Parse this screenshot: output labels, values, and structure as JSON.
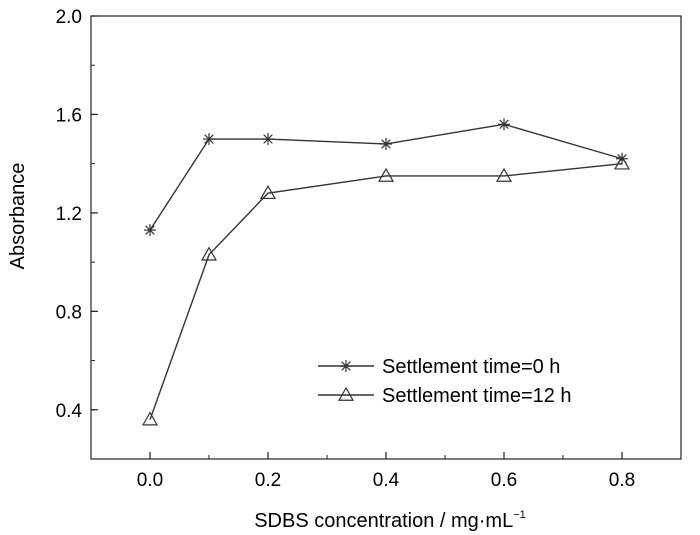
{
  "chart_data": {
    "type": "line",
    "xlabel": "SDBS concentration / mg·mL",
    "xlabel_sup": "−1",
    "ylabel": "Absorbance",
    "xlim": [
      -0.1,
      0.9
    ],
    "ylim": [
      0.2,
      2.0
    ],
    "xticks": [
      0.0,
      0.2,
      0.4,
      0.6,
      0.8
    ],
    "xtick_labels": [
      "0.0",
      "0.2",
      "0.4",
      "0.6",
      "0.8"
    ],
    "yticks": [
      0.4,
      0.8,
      1.2,
      1.6,
      2.0
    ],
    "ytick_labels": [
      "0.4",
      "0.8",
      "1.2",
      "1.6",
      "2.0"
    ],
    "grid": false,
    "legend_position": "bottom-right",
    "series": [
      {
        "name": "Settlement time=0 h",
        "marker": "asterisk",
        "x": [
          0.0,
          0.1,
          0.2,
          0.4,
          0.6,
          0.8
        ],
        "y": [
          1.13,
          1.5,
          1.5,
          1.48,
          1.56,
          1.42
        ]
      },
      {
        "name": "Settlement time=12 h",
        "marker": "triangle",
        "x": [
          0.0,
          0.1,
          0.2,
          0.4,
          0.6,
          0.8
        ],
        "y": [
          0.36,
          1.03,
          1.28,
          1.35,
          1.35,
          1.4
        ]
      }
    ]
  }
}
